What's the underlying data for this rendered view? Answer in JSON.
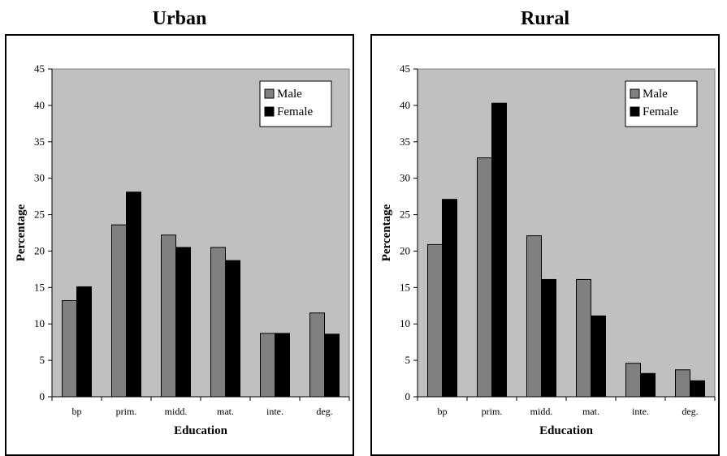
{
  "chart_data": [
    {
      "type": "bar",
      "title": "Urban",
      "xlabel": "Education",
      "ylabel": "Percentage",
      "categories": [
        "bp",
        "prim.",
        "midd.",
        "mat.",
        "inte.",
        "deg."
      ],
      "series": [
        {
          "name": "Male",
          "color": "#808080",
          "values": [
            13.2,
            23.6,
            22.2,
            20.5,
            8.7,
            11.5
          ]
        },
        {
          "name": "Female",
          "color": "#000000",
          "values": [
            15.1,
            28.1,
            20.5,
            18.7,
            8.7,
            8.6
          ]
        }
      ],
      "ylim": [
        0,
        45
      ],
      "yticks": [
        0,
        5,
        10,
        15,
        20,
        25,
        30,
        35,
        40,
        45
      ],
      "plot_background": "#c0c0c0",
      "grid": false,
      "legend_position": "top-right"
    },
    {
      "type": "bar",
      "title": "Rural",
      "xlabel": "Education",
      "ylabel": "Percentage",
      "categories": [
        "bp",
        "prim.",
        "midd.",
        "mat.",
        "inte.",
        "deg."
      ],
      "series": [
        {
          "name": "Male",
          "color": "#808080",
          "values": [
            20.9,
            32.8,
            22.1,
            16.1,
            4.6,
            3.7
          ]
        },
        {
          "name": "Female",
          "color": "#000000",
          "values": [
            27.1,
            40.3,
            16.1,
            11.1,
            3.2,
            2.2
          ]
        }
      ],
      "ylim": [
        0,
        45
      ],
      "yticks": [
        0,
        5,
        10,
        15,
        20,
        25,
        30,
        35,
        40,
        45
      ],
      "plot_background": "#c0c0c0",
      "grid": false,
      "legend_position": "top-right"
    }
  ]
}
